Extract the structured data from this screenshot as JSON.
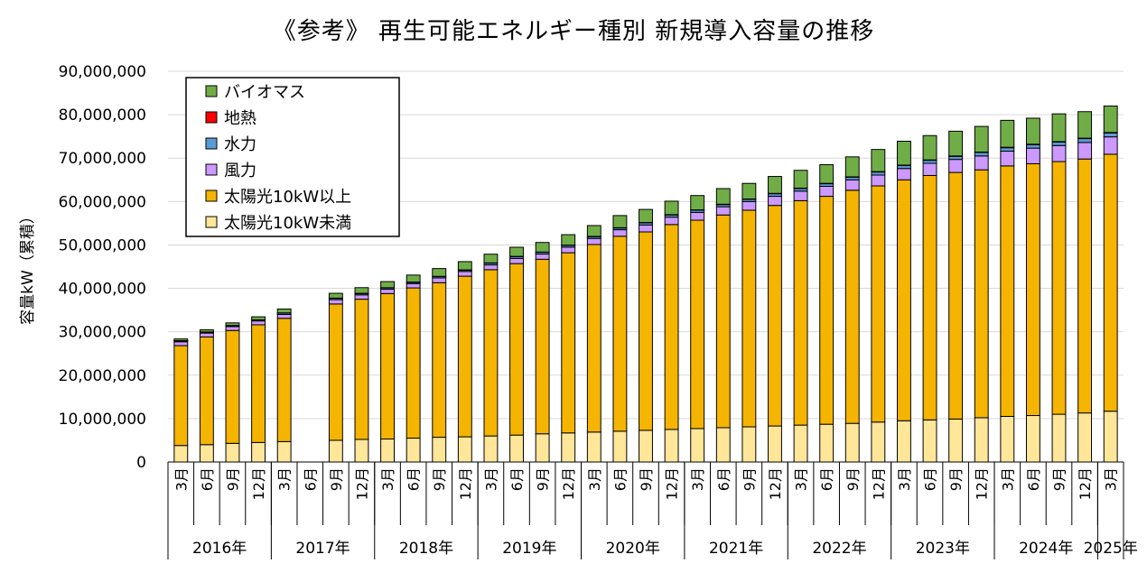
{
  "chart_data": {
    "type": "bar",
    "stacked": true,
    "title": "《参考》 再生可能エネルギー種別 新規導入容量の推移",
    "ylabel": "容量kW（累積）",
    "ylim": [
      0,
      90000000
    ],
    "yticks": [
      0,
      10000000,
      20000000,
      30000000,
      40000000,
      50000000,
      60000000,
      70000000,
      80000000,
      90000000
    ],
    "ytick_labels": [
      "0",
      "10,000,000",
      "20,000,000",
      "30,000,000",
      "40,000,000",
      "50,000,000",
      "60,000,000",
      "70,000,000",
      "80,000,000",
      "90,000,000"
    ],
    "grid": true,
    "legend_position": "top-left",
    "categories": [
      "3月",
      "6月",
      "9月",
      "12月",
      "3月",
      "6月",
      "9月",
      "12月",
      "3月",
      "6月",
      "9月",
      "12月",
      "3月",
      "6月",
      "9月",
      "12月",
      "3月",
      "6月",
      "9月",
      "12月",
      "3月",
      "6月",
      "9月",
      "12月",
      "3月",
      "6月",
      "9月",
      "12月",
      "3月",
      "6月",
      "9月",
      "12月",
      "3月",
      "6月",
      "9月",
      "12月",
      "3月"
    ],
    "year_groups": [
      {
        "label": "2016年",
        "start": 0,
        "count": 4
      },
      {
        "label": "2017年",
        "start": 4,
        "count": 4
      },
      {
        "label": "2018年",
        "start": 8,
        "count": 4
      },
      {
        "label": "2019年",
        "start": 12,
        "count": 4
      },
      {
        "label": "2020年",
        "start": 16,
        "count": 4
      },
      {
        "label": "2021年",
        "start": 20,
        "count": 4
      },
      {
        "label": "2022年",
        "start": 24,
        "count": 4
      },
      {
        "label": "2023年",
        "start": 28,
        "count": 4
      },
      {
        "label": "2024年",
        "start": 32,
        "count": 4
      },
      {
        "label": "2025年",
        "start": 36,
        "count": 1
      }
    ],
    "series": [
      {
        "name": "太陽光10kW未満",
        "color": "#FFE699",
        "values": [
          3800000,
          4000000,
          4300000,
          4500000,
          4700000,
          null,
          5000000,
          5200000,
          5300000,
          5500000,
          5700000,
          5800000,
          6000000,
          6200000,
          6500000,
          6700000,
          6900000,
          7100000,
          7300000,
          7500000,
          7700000,
          7900000,
          8100000,
          8300000,
          8500000,
          8700000,
          8900000,
          9200000,
          9500000,
          9700000,
          9900000,
          10200000,
          10500000,
          10700000,
          11000000,
          11300000,
          11700000
        ]
      },
      {
        "name": "太陽光10kW以上",
        "color": "#F4B400",
        "values": [
          23000000,
          24800000,
          26000000,
          27100000,
          28400000,
          null,
          31400000,
          32300000,
          33500000,
          34600000,
          35600000,
          37000000,
          38300000,
          39500000,
          40200000,
          41500000,
          43200000,
          44900000,
          45700000,
          47200000,
          48000000,
          49000000,
          49900000,
          50800000,
          51700000,
          52500000,
          53700000,
          54400000,
          55500000,
          56300000,
          56800000,
          57100000,
          57700000,
          58000000,
          58200000,
          58500000,
          59200000
        ]
      },
      {
        "name": "風力",
        "color": "#CC99FF",
        "values": [
          900000,
          900000,
          900000,
          900000,
          900000,
          null,
          1000000,
          1000000,
          1000000,
          1000000,
          1100000,
          1100000,
          1100000,
          1200000,
          1200000,
          1300000,
          1400000,
          1500000,
          1600000,
          1700000,
          1800000,
          1900000,
          2000000,
          2100000,
          2200000,
          2300000,
          2400000,
          2500000,
          2600000,
          2800000,
          3000000,
          3200000,
          3400000,
          3600000,
          3700000,
          3800000,
          4000000
        ]
      },
      {
        "name": "水力",
        "color": "#5B9BD5",
        "values": [
          200000,
          200000,
          200000,
          200000,
          300000,
          null,
          300000,
          300000,
          300000,
          300000,
          300000,
          300000,
          400000,
          400000,
          400000,
          400000,
          400000,
          400000,
          500000,
          500000,
          500000,
          500000,
          500000,
          600000,
          600000,
          600000,
          600000,
          700000,
          700000,
          700000,
          700000,
          800000,
          800000,
          800000,
          800000,
          900000,
          900000
        ]
      },
      {
        "name": "地熱",
        "color": "#FF0000",
        "values": [
          50000,
          50000,
          50000,
          50000,
          50000,
          null,
          60000,
          60000,
          60000,
          60000,
          60000,
          60000,
          70000,
          70000,
          70000,
          70000,
          70000,
          70000,
          80000,
          80000,
          80000,
          80000,
          80000,
          80000,
          90000,
          90000,
          90000,
          90000,
          90000,
          90000,
          100000,
          100000,
          100000,
          100000,
          100000,
          100000,
          100000
        ]
      },
      {
        "name": "バイオマス",
        "color": "#70AD47",
        "values": [
          400000,
          500000,
          600000,
          700000,
          900000,
          null,
          1100000,
          1300000,
          1400000,
          1600000,
          1800000,
          1900000,
          2000000,
          2100000,
          2200000,
          2400000,
          2500000,
          2800000,
          3000000,
          3100000,
          3300000,
          3600000,
          3600000,
          3900000,
          4100000,
          4300000,
          4600000,
          5100000,
          5500000,
          5600000,
          5700000,
          5900000,
          6200000,
          6000000,
          6400000,
          6100000,
          6100000
        ]
      }
    ],
    "legend_order": [
      "バイオマス",
      "地熱",
      "水力",
      "風力",
      "太陽光10kW以上",
      "太陽光10kW未満"
    ]
  }
}
